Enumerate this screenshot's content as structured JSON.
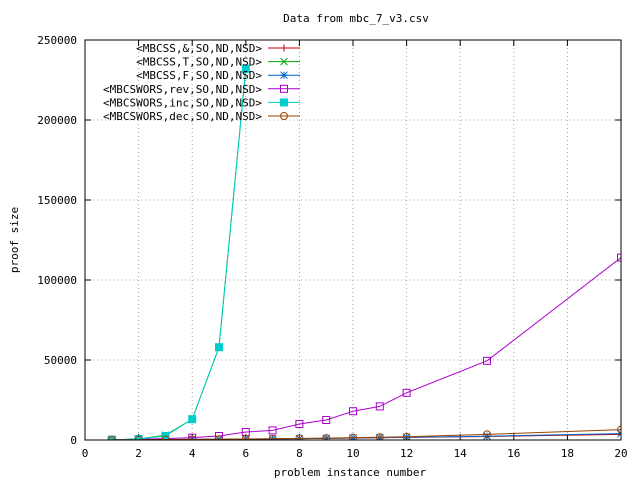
{
  "chart_data": {
    "type": "line",
    "title": "Data from mbc_7_v3.csv",
    "xlabel": "problem instance number",
    "ylabel": "proof size",
    "xlim": [
      0,
      20
    ],
    "ylim": [
      0,
      250000
    ],
    "xticks": [
      0,
      2,
      4,
      6,
      8,
      10,
      12,
      14,
      16,
      18,
      20
    ],
    "yticks": [
      0,
      50000,
      100000,
      150000,
      200000,
      250000
    ],
    "grid": true,
    "legend_position": "top-left",
    "series": [
      {
        "name": "<MBCSS,&,SO,ND,NSD>",
        "color": "#cc0000",
        "marker": "plus",
        "x": [
          1,
          2,
          3,
          4,
          5,
          6,
          7,
          8,
          9,
          10,
          11,
          12,
          15,
          20
        ],
        "y": [
          80,
          150,
          250,
          350,
          450,
          550,
          700,
          900,
          1000,
          1200,
          1400,
          1600,
          2200,
          3500
        ]
      },
      {
        "name": "<MBCSS,T,SO,ND,NSD>",
        "color": "#00aa00",
        "marker": "cross",
        "x": [
          1,
          2,
          3,
          4,
          5,
          6
        ],
        "y": [
          100,
          600,
          3000,
          13000,
          58000,
          232000
        ]
      },
      {
        "name": "<MBCSS,F,SO,ND,NSD>",
        "color": "#0066cc",
        "marker": "star",
        "x": [
          1,
          2,
          3,
          4,
          5,
          6,
          7,
          8,
          9,
          10,
          11,
          12,
          15,
          20
        ],
        "y": [
          80,
          150,
          250,
          350,
          450,
          550,
          700,
          900,
          1000,
          1300,
          1500,
          1700,
          2400,
          4000
        ]
      },
      {
        "name": "<MBCSWORS,rev,SO,ND,NSD>",
        "color": "#aa00cc",
        "marker": "square-open",
        "x": [
          1,
          2,
          3,
          4,
          5,
          6,
          7,
          8,
          9,
          10,
          11,
          12,
          15,
          20
        ],
        "y": [
          200,
          500,
          900,
          1500,
          2500,
          5000,
          6000,
          10000,
          12500,
          18000,
          21000,
          29500,
          49500,
          114000
        ]
      },
      {
        "name": "<MBCSWORS,inc,SO,ND,NSD>",
        "color": "#00cccc",
        "marker": "square-filled",
        "x": [
          1,
          2,
          3,
          4,
          5,
          6
        ],
        "y": [
          100,
          600,
          2500,
          13000,
          58000,
          232000
        ]
      },
      {
        "name": "<MBCSWORS,dec,SO,ND,NSD>",
        "color": "#994400",
        "marker": "circle-open",
        "x": [
          1,
          2,
          3,
          4,
          5,
          6,
          7,
          8,
          9,
          10,
          11,
          12,
          15,
          20
        ],
        "y": [
          100,
          200,
          300,
          400,
          500,
          600,
          800,
          1000,
          1200,
          1500,
          1700,
          2000,
          3500,
          6500
        ]
      }
    ]
  }
}
